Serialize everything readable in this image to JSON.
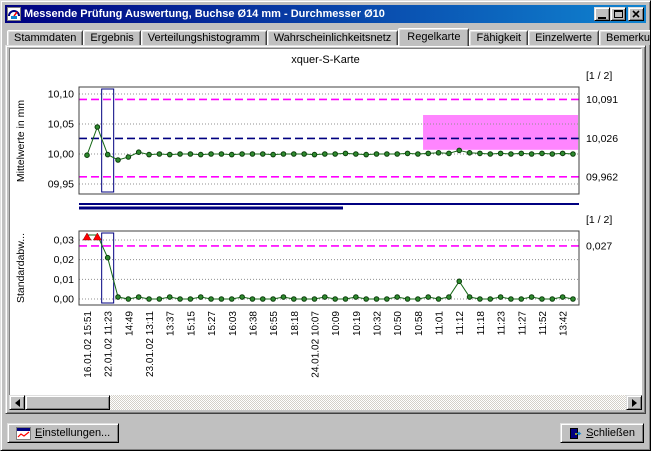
{
  "window": {
    "title": "Messende Prüfung Auswertung, Buchse Ø14 mm - Durchmesser Ø10",
    "titlebar_colors": {
      "left": "#000080",
      "right": "#1084d0"
    }
  },
  "tabs": [
    {
      "label": "Stammdaten",
      "active": false
    },
    {
      "label": "Ergebnis",
      "active": false
    },
    {
      "label": "Verteilungshistogramm",
      "active": false
    },
    {
      "label": "Wahrscheinlichkeitsnetz",
      "active": false
    },
    {
      "label": "Regelkarte",
      "active": true
    },
    {
      "label": "Fähigkeit",
      "active": false
    },
    {
      "label": "Einzelwerte",
      "active": false
    },
    {
      "label": "Bemerkungen",
      "active": false
    }
  ],
  "buttons": {
    "settings_label": "Einstellungen...",
    "close_label": "Schließen"
  },
  "chart_data": {
    "type": "line",
    "title": "xquer-S-Karte",
    "point_count": 48,
    "x_labels_every_nth_point": 2,
    "x_labels": [
      "16.01.02 15:51",
      "22.01.02 11:23",
      "14:49",
      "23.01.02 13:11",
      "13:37",
      "15:15",
      "15:27",
      "16:03",
      "16:38",
      "16:55",
      "18:18",
      "24.01.02 10:07",
      "10:09",
      "10:19",
      "10:32",
      "10:50",
      "10:58",
      "11:01",
      "11:12",
      "11:18",
      "11:23",
      "11:27",
      "11:52",
      "13:42"
    ],
    "colors": {
      "point_fill": "#2e8b2e",
      "point_stroke": "#0d3d0d",
      "line": "#156815",
      "limit_magenta": "#ff00ff",
      "limit_navy": "#000080",
      "highlight": "#ff85ff",
      "out_of_range": "#ff0000",
      "selection": "#000080",
      "grid": "#909090",
      "separator": "#000080"
    },
    "charts": [
      {
        "name": "mean",
        "ylabel": "Mittelwerte in mm",
        "page_indicator": "[1 / 2]",
        "ytick_labels": [
          "10,10",
          "10,05",
          "10,00",
          "09,95"
        ],
        "ytick_values": [
          10.1,
          10.05,
          10.0,
          9.95
        ],
        "limit_lines": [
          {
            "value": 10.091,
            "label": "10,091",
            "color": "#ff00ff"
          },
          {
            "value": 10.026,
            "label": "10,026",
            "color": "#000080"
          },
          {
            "value": 9.962,
            "label": "09,962",
            "color": "#ff00ff"
          }
        ],
        "highlight_region": {
          "from_index": 32.5,
          "y_top": 10.065,
          "y_bottom": 10.007
        },
        "selection_index": 2,
        "values": [
          9.998,
          10.045,
          9.999,
          9.99,
          9.995,
          10.003,
          9.999,
          10.0,
          9.999,
          10.0,
          10.0,
          9.999,
          10.0,
          10.0,
          9.999,
          10.0,
          10.0,
          10.0,
          9.999,
          10.0,
          10.0,
          10.0,
          9.999,
          10.0,
          10.0,
          10.001,
          10.0,
          9.999,
          10.0,
          10.0,
          10.0,
          10.001,
          10.0,
          10.001,
          10.002,
          10.001,
          10.006,
          10.002,
          10.001,
          10.0,
          10.001,
          10.0,
          10.001,
          10.0,
          10.001,
          10.0,
          10.001,
          10.0
        ]
      },
      {
        "name": "stddev",
        "ylabel": "Standardabw...",
        "page_indicator": "[1 / 2]",
        "ytick_labels": [
          "0,03",
          "0,02",
          "0,01",
          "0,00"
        ],
        "ytick_values": [
          0.03,
          0.02,
          0.01,
          0.0
        ],
        "limit_lines": [
          {
            "value": 0.027,
            "label": "0,027",
            "color": "#ff00ff"
          }
        ],
        "out_of_range_indices": [
          0,
          1
        ],
        "selection_index": 2,
        "values": [
          0.038,
          0.035,
          0.021,
          0.001,
          0.0,
          0.001,
          0.0,
          0.0,
          0.001,
          0.0,
          0.0,
          0.001,
          0.0,
          0.0,
          0.0,
          0.001,
          0.0,
          0.0,
          0.0,
          0.001,
          0.0,
          0.0,
          0.0,
          0.001,
          0.0,
          0.0,
          0.001,
          0.0,
          0.0,
          0.0,
          0.001,
          0.0,
          0.0,
          0.001,
          0.0,
          0.001,
          0.009,
          0.001,
          0.0,
          0.0,
          0.001,
          0.0,
          0.0,
          0.001,
          0.0,
          0.0,
          0.001,
          0.0
        ]
      }
    ]
  }
}
